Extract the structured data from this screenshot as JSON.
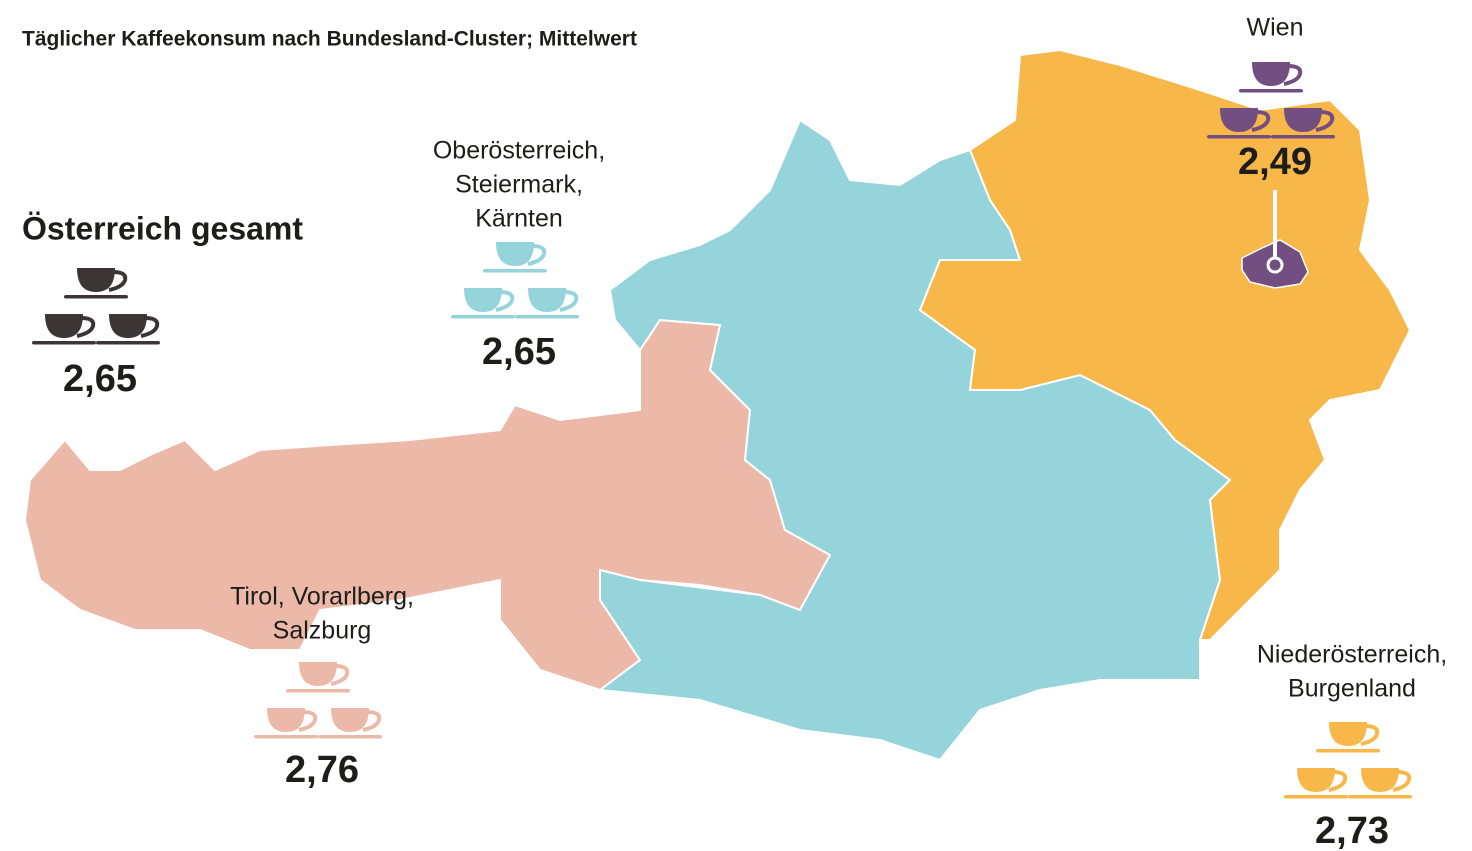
{
  "title": "Täglicher Kaffeekonsum nach Bundesland-Cluster; Mittelwert",
  "summary": {
    "label": "Österreich gesamt",
    "value": "2,65"
  },
  "regions": [
    {
      "label": [
        "Tirol, Vorarlberg,",
        "Salzburg"
      ],
      "value": "2,76"
    },
    {
      "label": [
        "Oberösterreich,",
        "Steiermark,",
        "Kärnten"
      ],
      "value": "2,65"
    },
    {
      "label": [
        "Niederösterreich,",
        "Burgenland"
      ],
      "value": "2,73"
    },
    {
      "label": [
        "Wien"
      ],
      "value": "2,49"
    }
  ]
}
